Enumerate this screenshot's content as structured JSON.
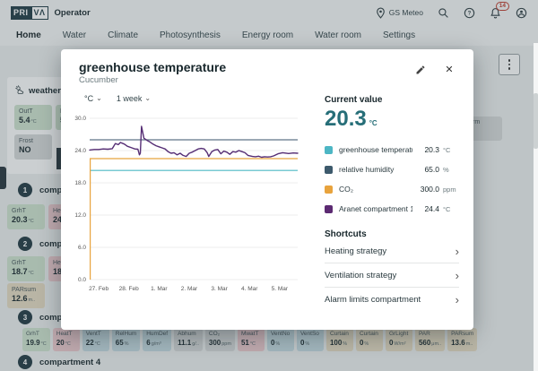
{
  "header": {
    "logo": {
      "left": "PRI",
      "right": "VΛ"
    },
    "app_name": "Operator",
    "station_label": "GS Meteo",
    "notification_count": "14"
  },
  "nav": {
    "items": [
      {
        "label": "Home",
        "active": true
      },
      {
        "label": "Water"
      },
      {
        "label": "Climate"
      },
      {
        "label": "Photosynthesis"
      },
      {
        "label": "Energy room"
      },
      {
        "label": "Water room"
      },
      {
        "label": "Settings"
      }
    ]
  },
  "background": {
    "weather_card": {
      "title": "weather",
      "badges": [
        {
          "label": "OutT",
          "value": "5.4",
          "unit": "°C",
          "color": "green"
        },
        {
          "label": "Re",
          "value": "5",
          "unit": "",
          "color": "green"
        }
      ],
      "badges2": [
        {
          "label": "Frost",
          "value": "NO",
          "unit": "",
          "color": "gray"
        }
      ]
    },
    "compartment1": {
      "num": "1",
      "name": "compa",
      "badges": [
        {
          "label": "GrhT",
          "value": "20.3",
          "unit": "°C",
          "color": "green"
        },
        {
          "label": "He",
          "value": "24",
          "unit": "",
          "color": "pink"
        }
      ]
    },
    "compartment2": {
      "num": "2",
      "name": "compa",
      "badges": [
        {
          "label": "GrhT",
          "value": "18.7",
          "unit": "°C",
          "color": "green"
        },
        {
          "label": "He",
          "value": "18",
          "unit": "",
          "color": "pink"
        }
      ],
      "badges2": [
        {
          "label": "PARsum",
          "value": "12.6",
          "unit": "m..",
          "color": "tan"
        }
      ]
    },
    "compartment3": {
      "num": "3",
      "name": "compa",
      "badges": [
        {
          "label": "GrhT",
          "value": "19.9",
          "unit": "°C",
          "color": "green"
        },
        {
          "label": "HeatT",
          "value": "20",
          "unit": "°C",
          "color": "pink"
        },
        {
          "label": "VentT",
          "value": "22",
          "unit": "°C",
          "color": "blue"
        },
        {
          "label": "RelHum",
          "value": "65",
          "unit": "%",
          "color": "blue"
        },
        {
          "label": "HumDef",
          "value": "6",
          "unit": "g/m³",
          "color": "blue"
        },
        {
          "label": "Abhum",
          "value": "11.1",
          "unit": "g/..",
          "color": "gray"
        },
        {
          "label": "CO₂",
          "value": "300",
          "unit": "ppm",
          "color": "gray"
        },
        {
          "label": "MwatT",
          "value": "51",
          "unit": "°C",
          "color": "pink"
        },
        {
          "label": "VentNo",
          "value": "0",
          "unit": "%",
          "color": "blue"
        },
        {
          "label": "VentSo",
          "value": "0",
          "unit": "%",
          "color": "blue"
        },
        {
          "label": "Curtain",
          "value": "100",
          "unit": "%",
          "color": "tan"
        },
        {
          "label": "Curtain",
          "value": "0",
          "unit": "%",
          "color": "tan"
        },
        {
          "label": "GrLight",
          "value": "0",
          "unit": "W/m²",
          "color": "tan"
        },
        {
          "label": "PAR",
          "value": "560",
          "unit": "μm..",
          "color": "tan"
        },
        {
          "label": "PARsum",
          "value": "13.6",
          "unit": "m..",
          "color": "tan"
        }
      ]
    },
    "compartment4": {
      "num": "4",
      "name": "compartment 4"
    },
    "fragment_badge": "rm"
  },
  "modal": {
    "title": "greenhouse temperature",
    "subtitle": "Cucumber",
    "unit_selector": "°C",
    "range_selector": "1 week",
    "current": {
      "heading": "Current value",
      "value": "20.3",
      "unit": "°C"
    },
    "legend": [
      {
        "name": "greenhouse temperature",
        "value": "20.3",
        "unit": "°C",
        "color": "#4db6c4"
      },
      {
        "name": "relative humidity",
        "value": "65.0",
        "unit": "%",
        "color": "#3d5a6c"
      },
      {
        "name": "CO₂",
        "value": "300.0",
        "unit": "ppm",
        "color": "#e8a33d"
      },
      {
        "name": "Aranet compartment 1",
        "value": "24.4",
        "unit": "°C",
        "color": "#5c2a72"
      }
    ],
    "shortcuts": {
      "heading": "Shortcuts",
      "items": [
        {
          "label": "Heating strategy"
        },
        {
          "label": "Ventilation strategy"
        },
        {
          "label": "Alarm limits compartment"
        }
      ]
    }
  },
  "chart_data": {
    "type": "line",
    "title": "greenhouse temperature",
    "subtitle": "Cucumber",
    "unit": "°C",
    "range": "1 week",
    "grid": true,
    "legend_position": "right-panel",
    "ylim": [
      0,
      30
    ],
    "y_ticks": [
      0,
      6,
      12,
      18,
      24,
      30
    ],
    "y_tick_labels": [
      "0.0",
      "6.0",
      "12.0",
      "18.0",
      "24.0",
      "30.0"
    ],
    "x_tick_labels": [
      "27. Feb",
      "28. Feb",
      "1. Mar",
      "2. Mar",
      "3. Mar",
      "4. Mar",
      "5. Mar"
    ],
    "x_range_days": [
      -0.3,
      6.6
    ],
    "series": [
      {
        "name": "greenhouse temperature",
        "color": "#4cb8c4",
        "style": "hline",
        "y": 20.3
      },
      {
        "name": "relative humidity",
        "color": "#5f7486",
        "style": "hline",
        "y": 26.0
      },
      {
        "name": "CO₂",
        "color": "#e8a33d",
        "style": "hline",
        "y": 22.5,
        "drop_to_zero_at_start": true
      },
      {
        "name": "Aranet compartment 1",
        "color": "#552d74",
        "style": "line",
        "points": [
          [
            -0.3,
            24.1
          ],
          [
            -0.15,
            24.2
          ],
          [
            0,
            24.2
          ],
          [
            0.15,
            24.3
          ],
          [
            0.3,
            24.25
          ],
          [
            0.45,
            24.35
          ],
          [
            0.55,
            25.3
          ],
          [
            0.65,
            25.1
          ],
          [
            0.72,
            25.5
          ],
          [
            0.85,
            25.2
          ],
          [
            0.95,
            24.8
          ],
          [
            1.1,
            24.5
          ],
          [
            1.2,
            24.3
          ],
          [
            1.3,
            24.25
          ],
          [
            1.35,
            23.2
          ],
          [
            1.38,
            23.5
          ],
          [
            1.42,
            28.5
          ],
          [
            1.5,
            26.3
          ],
          [
            1.6,
            25.9
          ],
          [
            1.7,
            25.6
          ],
          [
            1.8,
            25.2
          ],
          [
            1.9,
            24.9
          ],
          [
            2.0,
            24.7
          ],
          [
            2.1,
            24.5
          ],
          [
            2.2,
            24.3
          ],
          [
            2.3,
            23.8
          ],
          [
            2.4,
            23.5
          ],
          [
            2.5,
            23.6
          ],
          [
            2.6,
            23.2
          ],
          [
            2.7,
            23.5
          ],
          [
            2.8,
            23.1
          ],
          [
            2.9,
            22.9
          ],
          [
            3.0,
            23.5
          ],
          [
            3.1,
            23.7
          ],
          [
            3.2,
            24.0
          ],
          [
            3.3,
            24.3
          ],
          [
            3.4,
            24.4
          ],
          [
            3.5,
            24.3
          ],
          [
            3.6,
            23.6
          ],
          [
            3.65,
            22.9
          ],
          [
            3.75,
            23.8
          ],
          [
            3.85,
            24.1
          ],
          [
            3.95,
            24.2
          ],
          [
            4.05,
            23.4
          ],
          [
            4.15,
            23.9
          ],
          [
            4.25,
            23.7
          ],
          [
            4.35,
            23.3
          ],
          [
            4.45,
            23.8
          ],
          [
            4.55,
            23.7
          ],
          [
            4.65,
            24.0
          ],
          [
            4.75,
            23.8
          ],
          [
            4.85,
            23.6
          ],
          [
            4.95,
            23.1
          ],
          [
            5.1,
            22.9
          ],
          [
            5.2,
            22.85
          ],
          [
            5.3,
            22.95
          ],
          [
            5.4,
            22.75
          ],
          [
            5.5,
            22.85
          ],
          [
            5.6,
            22.8
          ],
          [
            5.7,
            22.85
          ],
          [
            5.8,
            23.0
          ],
          [
            5.95,
            23.4
          ],
          [
            6.1,
            23.6
          ],
          [
            6.3,
            23.45
          ],
          [
            6.45,
            23.55
          ],
          [
            6.6,
            23.5
          ]
        ]
      }
    ]
  }
}
